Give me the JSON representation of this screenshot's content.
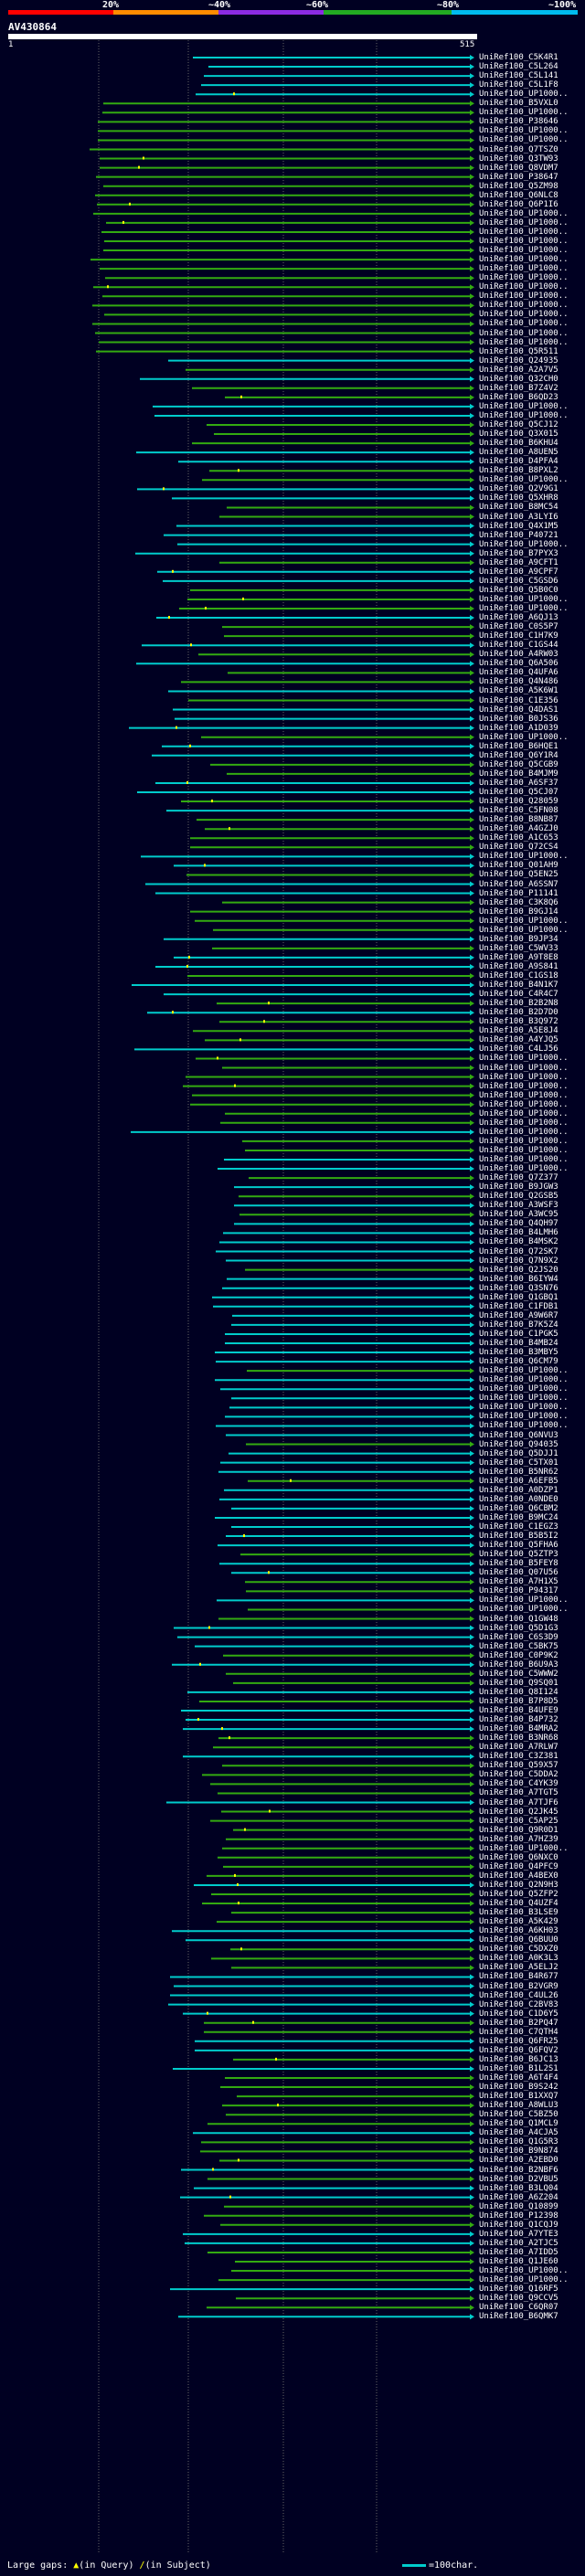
{
  "scale": {
    "labels": [
      "20%",
      "~40%",
      "~60%",
      "~80%",
      "~100%"
    ],
    "colors": [
      "#ff0000",
      "#ff8c00",
      "#8b2be2",
      "#22aa22",
      "#00bbee"
    ]
  },
  "query": {
    "title": "AV430864",
    "start": "1",
    "end": "515"
  },
  "colors": {
    "cyan": "#00cccc",
    "green": "#33aa11",
    "gap": "#ffff00",
    "grid": "#666666"
  },
  "hits": [
    "UniRef100_C5K4R1",
    "UniRef100_C5L264",
    "UniRef100_C5L141",
    "UniRef100_C5L1F8",
    "UniRef100_UP1000..",
    "UniRef100_B5VXL0",
    "UniRef100_UP1000..",
    "UniRef100_P38646",
    "UniRef100_UP1000..",
    "UniRef100_UP1000..",
    "UniRef100_Q7TSZ0",
    "UniRef100_Q3TW93",
    "UniRef100_Q8VDM7",
    "UniRef100_P38647",
    "UniRef100_Q5ZM98",
    "UniRef100_Q6NLC8",
    "UniRef100_Q6P1I6",
    "UniRef100_UP1000..",
    "UniRef100_UP1000..",
    "UniRef100_UP1000..",
    "UniRef100_UP1000..",
    "UniRef100_UP1000..",
    "UniRef100_UP1000..",
    "UniRef100_UP1000..",
    "UniRef100_UP1000..",
    "UniRef100_UP1000..",
    "UniRef100_UP1000..",
    "UniRef100_UP1000..",
    "UniRef100_UP1000..",
    "UniRef100_UP1000..",
    "UniRef100_UP1000..",
    "UniRef100_UP1000..",
    "UniRef100_Q5R511",
    "UniRef100_Q24935",
    "UniRef100_A2A7V5",
    "UniRef100_Q32CH0",
    "UniRef100_B7Z4V2",
    "UniRef100_B6QD23",
    "UniRef100_UP1000..",
    "UniRef100_UP1000..",
    "UniRef100_Q5CJ12",
    "UniRef100_Q3X015",
    "UniRef100_B6KHU4",
    "UniRef100_A8UEN5",
    "UniRef100_D4PFA4",
    "UniRef100_B8PXL2",
    "UniRef100_UP1000..",
    "UniRef100_Q2V9G1",
    "UniRef100_Q5XHR8",
    "UniRef100_B8MC54",
    "UniRef100_A3LYI6",
    "UniRef100_Q4X1M5",
    "UniRef100_P40721",
    "UniRef100_UP1000..",
    "UniRef100_B7PYX3",
    "UniRef100_A9CFT1",
    "UniRef100_A9CPF7",
    "UniRef100_C5GSD6",
    "UniRef100_Q5B0C0",
    "UniRef100_UP1000..",
    "UniRef100_UP1000..",
    "UniRef100_A6QJ13",
    "UniRef100_C0S5P7",
    "UniRef100_C1H7K9",
    "UniRef100_C1GS44",
    "UniRef100_A4RW03",
    "UniRef100_Q6A506",
    "UniRef100_Q4UFA6",
    "UniRef100_Q4N486",
    "UniRef100_A5K6W1",
    "UniRef100_C1E356",
    "UniRef100_Q4DAS1",
    "UniRef100_B0JS36",
    "UniRef100_A1D039",
    "UniRef100_UP1000..",
    "UniRef100_B6HQE1",
    "UniRef100_Q6Y1R4",
    "UniRef100_Q5CGB9",
    "UniRef100_B4MJM9",
    "UniRef100_A6SF37",
    "UniRef100_Q5CJ07",
    "UniRef100_Q28059",
    "UniRef100_C5FN08",
    "UniRef100_B8NB87",
    "UniRef100_A4GZJ0",
    "UniRef100_A1C653",
    "UniRef100_Q72CS4",
    "UniRef100_UP1000..",
    "UniRef100_Q01AH9",
    "UniRef100_Q5EN25",
    "UniRef100_A6SSN7",
    "UniRef100_P11141",
    "UniRef100_C3K8Q6",
    "UniRef100_B9GJ14",
    "UniRef100_UP1000..",
    "UniRef100_UP1000..",
    "UniRef100_B9JP34",
    "UniRef100_C5WV33",
    "UniRef100_A9T8E8",
    "UniRef100_A9S841",
    "UniRef100_C1GS18",
    "UniRef100_B4N1K7",
    "UniRef100_C4R4C7",
    "UniRef100_B2B2N8",
    "UniRef100_B2D7D0",
    "UniRef100_B3Q972",
    "UniRef100_A5E8J4",
    "UniRef100_A4YJQ5",
    "UniRef100_C4LJ56",
    "UniRef100_UP1000..",
    "UniRef100_UP1000..",
    "UniRef100_UP1000..",
    "UniRef100_UP1000..",
    "UniRef100_UP1000..",
    "UniRef100_UP1000..",
    "UniRef100_UP1000..",
    "UniRef100_UP1000..",
    "UniRef100_UP1000..",
    "UniRef100_UP1000..",
    "UniRef100_UP1000..",
    "UniRef100_UP1000..",
    "UniRef100_UP1000..",
    "UniRef100_Q7Z377",
    "UniRef100_B9JGW3",
    "UniRef100_Q2GSB5",
    "UniRef100_A3WSF3",
    "UniRef100_A3WC95",
    "UniRef100_Q4QH97",
    "UniRef100_B4LMH6",
    "UniRef100_B4MSK2",
    "UniRef100_Q72SK7",
    "UniRef100_Q7N9X2",
    "UniRef100_Q2JS20",
    "UniRef100_B6IYW4",
    "UniRef100_Q3SN76",
    "UniRef100_Q1GBQ1",
    "UniRef100_C1FDB1",
    "UniRef100_A9W6R7",
    "UniRef100_B7K5Z4",
    "UniRef100_C1PGK5",
    "UniRef100_B4MB24",
    "UniRef100_B3MBY5",
    "UniRef100_Q6CM79",
    "UniRef100_UP1000..",
    "UniRef100_UP1000..",
    "UniRef100_UP1000..",
    "UniRef100_UP1000..",
    "UniRef100_UP1000..",
    "UniRef100_UP1000..",
    "UniRef100_UP1000..",
    "UniRef100_Q6NVU3",
    "UniRef100_Q94035",
    "UniRef100_Q5DJJ1",
    "UniRef100_C5TX01",
    "UniRef100_B5NR62",
    "UniRef100_A6EFB5",
    "UniRef100_A0DZP1",
    "UniRef100_A0NDE0",
    "UniRef100_Q6CBM2",
    "UniRef100_B9MC24",
    "UniRef100_C1EGZ3",
    "UniRef100_B5B5I2",
    "UniRef100_Q5FHA6",
    "UniRef100_Q5ZTP3",
    "UniRef100_B5FEY8",
    "UniRef100_Q07U56",
    "UniRef100_A7H1X5",
    "UniRef100_P94317",
    "UniRef100_UP1000..",
    "UniRef100_UP1000..",
    "UniRef100_Q1GW48",
    "UniRef100_Q5D1G3",
    "UniRef100_C6S3D9",
    "UniRef100_C5BK75",
    "UniRef100_C0P9K2",
    "UniRef100_B6U9A3",
    "UniRef100_C5WWW2",
    "UniRef100_Q9SQ01",
    "UniRef100_Q8I124",
    "UniRef100_B7P8D5",
    "UniRef100_B4UFE9",
    "UniRef100_B4P732",
    "UniRef100_B4MRA2",
    "UniRef100_B3NR68",
    "UniRef100_A7RLW7",
    "UniRef100_C3Z381",
    "UniRef100_Q59X57",
    "UniRef100_C5DDA2",
    "UniRef100_C4YK39",
    "UniRef100_A7TGT5",
    "UniRef100_A7TJF6",
    "UniRef100_Q2JK45",
    "UniRef100_C5AP25",
    "UniRef100_Q9R0D1",
    "UniRef100_A7HZ39",
    "UniRef100_UP1000..",
    "UniRef100_Q6NXC0",
    "UniRef100_Q4PFC9",
    "UniRef100_A4BEX0",
    "UniRef100_Q2N9H3",
    "UniRef100_Q5ZFP2",
    "UniRef100_Q4UZF4",
    "UniRef100_B3LSE9",
    "UniRef100_A5K429",
    "UniRef100_A6KH03",
    "UniRef100_Q6BUU0",
    "UniRef100_C5DXZ0",
    "UniRef100_A0K3L3",
    "UniRef100_A5ELJ2",
    "UniRef100_B4R677",
    "UniRef100_B2VGR9",
    "UniRef100_C4UL26",
    "UniRef100_C2BV83",
    "UniRef100_C1D6Y5",
    "UniRef100_B2PQ47",
    "UniRef100_C7QTH4",
    "UniRef100_Q6FR25",
    "UniRef100_Q6FQV2",
    "UniRef100_B6JC13",
    "UniRef100_B1L2S1",
    "UniRef100_A6T4F4",
    "UniRef100_B9S242",
    "UniRef100_B1XXQ7",
    "UniRef100_A8WLU3",
    "UniRef100_C5BZ50",
    "UniRef100_Q1MCL9",
    "UniRef100_A4CJA5",
    "UniRef100_Q1G5R3",
    "UniRef100_B9N874",
    "UniRef100_A2EBD0",
    "UniRef100_B2NBF6",
    "UniRef100_D2VBU5",
    "UniRef100_B3LQ04",
    "UniRef100_A6Z204",
    "UniRef100_Q10899",
    "UniRef100_P12398",
    "UniRef100_Q1CQJ9",
    "UniRef100_A7YTE3",
    "UniRef100_A2TJC5",
    "UniRef100_A7IDD5",
    "UniRef100_Q1JE60",
    "UniRef100_UP1000..",
    "UniRef100_UP1000..",
    "UniRef100_Q16RF5",
    "UniRef100_Q9CCV5",
    "UniRef100_C6QR07",
    "UniRef100_B6QMK7"
  ],
  "legend": {
    "label": "Large gaps:",
    "query_gap": "(in Query)",
    "subject_gap": "(in Subject)",
    "scale_note": "=100char."
  }
}
